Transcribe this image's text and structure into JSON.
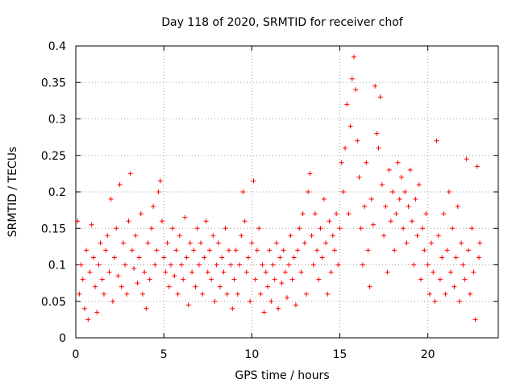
{
  "chart_data": {
    "type": "scatter",
    "title": "Day 118 of 2020, SRMTID for receiver chof",
    "xlabel": "GPS time / hours",
    "ylabel": "SRMTID / TECUs",
    "xlim": [
      0,
      24
    ],
    "ylim": [
      0,
      0.4
    ],
    "xticks": [
      0,
      5,
      10,
      15,
      20
    ],
    "yticks": [
      0,
      0.05,
      0.1,
      0.15,
      0.2,
      0.25,
      0.3,
      0.35,
      0.4
    ],
    "xtick_labels": [
      "0",
      "5",
      "10",
      "15",
      "20"
    ],
    "ytick_labels": [
      "0",
      "0.05",
      "0.1",
      "0.15",
      "0.2",
      "0.25",
      "0.3",
      "0.35",
      "0.4"
    ],
    "grid": true,
    "marker": "+",
    "color": "#ff0000",
    "series": [
      {
        "name": "SRMTID",
        "points": [
          [
            0.1,
            0.16
          ],
          [
            0.2,
            0.06
          ],
          [
            0.3,
            0.1
          ],
          [
            0.4,
            0.08
          ],
          [
            0.5,
            0.04
          ],
          [
            0.6,
            0.12
          ],
          [
            0.7,
            0.025
          ],
          [
            0.8,
            0.09
          ],
          [
            0.9,
            0.155
          ],
          [
            1.0,
            0.11
          ],
          [
            1.1,
            0.07
          ],
          [
            1.2,
            0.035
          ],
          [
            1.3,
            0.1
          ],
          [
            1.4,
            0.13
          ],
          [
            1.5,
            0.08
          ],
          [
            1.6,
            0.06
          ],
          [
            1.7,
            0.12
          ],
          [
            1.8,
            0.14
          ],
          [
            1.9,
            0.09
          ],
          [
            2.0,
            0.19
          ],
          [
            2.1,
            0.05
          ],
          [
            2.2,
            0.11
          ],
          [
            2.3,
            0.15
          ],
          [
            2.4,
            0.085
          ],
          [
            2.5,
            0.21
          ],
          [
            2.6,
            0.07
          ],
          [
            2.7,
            0.13
          ],
          [
            2.8,
            0.1
          ],
          [
            2.9,
            0.06
          ],
          [
            3.0,
            0.16
          ],
          [
            3.1,
            0.225
          ],
          [
            3.2,
            0.12
          ],
          [
            3.3,
            0.095
          ],
          [
            3.4,
            0.14
          ],
          [
            3.5,
            0.075
          ],
          [
            3.6,
            0.11
          ],
          [
            3.7,
            0.17
          ],
          [
            3.8,
            0.06
          ],
          [
            3.9,
            0.09
          ],
          [
            4.0,
            0.04
          ],
          [
            4.1,
            0.13
          ],
          [
            4.2,
            0.08
          ],
          [
            4.3,
            0.15
          ],
          [
            4.4,
            0.18
          ],
          [
            4.5,
            0.1
          ],
          [
            4.6,
            0.12
          ],
          [
            4.7,
            0.2
          ],
          [
            4.8,
            0.215
          ],
          [
            4.9,
            0.16
          ],
          [
            5.0,
            0.11
          ],
          [
            5.1,
            0.09
          ],
          [
            5.2,
            0.13
          ],
          [
            5.3,
            0.07
          ],
          [
            5.4,
            0.1
          ],
          [
            5.5,
            0.15
          ],
          [
            5.6,
            0.085
          ],
          [
            5.7,
            0.12
          ],
          [
            5.8,
            0.06
          ],
          [
            5.9,
            0.14
          ],
          [
            6.0,
            0.1
          ],
          [
            6.1,
            0.08
          ],
          [
            6.2,
            0.165
          ],
          [
            6.3,
            0.11
          ],
          [
            6.4,
            0.045
          ],
          [
            6.5,
            0.13
          ],
          [
            6.6,
            0.09
          ],
          [
            6.7,
            0.12
          ],
          [
            6.8,
            0.07
          ],
          [
            6.9,
            0.15
          ],
          [
            7.0,
            0.1
          ],
          [
            7.1,
            0.13
          ],
          [
            7.2,
            0.06
          ],
          [
            7.3,
            0.11
          ],
          [
            7.4,
            0.16
          ],
          [
            7.5,
            0.09
          ],
          [
            7.6,
            0.12
          ],
          [
            7.7,
            0.08
          ],
          [
            7.8,
            0.14
          ],
          [
            7.9,
            0.05
          ],
          [
            8.0,
            0.1
          ],
          [
            8.1,
            0.13
          ],
          [
            8.2,
            0.07
          ],
          [
            8.3,
            0.11
          ],
          [
            8.4,
            0.09
          ],
          [
            8.5,
            0.15
          ],
          [
            8.6,
            0.06
          ],
          [
            8.7,
            0.12
          ],
          [
            8.8,
            0.1
          ],
          [
            8.9,
            0.04
          ],
          [
            9.0,
            0.08
          ],
          [
            9.1,
            0.12
          ],
          [
            9.2,
            0.06
          ],
          [
            9.3,
            0.1
          ],
          [
            9.4,
            0.14
          ],
          [
            9.5,
            0.2
          ],
          [
            9.6,
            0.16
          ],
          [
            9.7,
            0.09
          ],
          [
            9.8,
            0.11
          ],
          [
            9.9,
            0.05
          ],
          [
            10.0,
            0.13
          ],
          [
            10.1,
            0.215
          ],
          [
            10.2,
            0.08
          ],
          [
            10.3,
            0.12
          ],
          [
            10.4,
            0.15
          ],
          [
            10.5,
            0.06
          ],
          [
            10.6,
            0.1
          ],
          [
            10.7,
            0.035
          ],
          [
            10.8,
            0.09
          ],
          [
            10.9,
            0.07
          ],
          [
            11.0,
            0.12
          ],
          [
            11.1,
            0.05
          ],
          [
            11.2,
            0.1
          ],
          [
            11.3,
            0.08
          ],
          [
            11.4,
            0.13
          ],
          [
            11.5,
            0.04
          ],
          [
            11.6,
            0.11
          ],
          [
            11.7,
            0.075
          ],
          [
            11.8,
            0.12
          ],
          [
            11.9,
            0.09
          ],
          [
            12.0,
            0.055
          ],
          [
            12.1,
            0.1
          ],
          [
            12.2,
            0.14
          ],
          [
            12.3,
            0.08
          ],
          [
            12.4,
            0.11
          ],
          [
            12.5,
            0.045
          ],
          [
            12.6,
            0.12
          ],
          [
            12.7,
            0.15
          ],
          [
            12.8,
            0.09
          ],
          [
            12.9,
            0.17
          ],
          [
            13.0,
            0.13
          ],
          [
            13.1,
            0.06
          ],
          [
            13.2,
            0.2
          ],
          [
            13.3,
            0.225
          ],
          [
            13.4,
            0.14
          ],
          [
            13.5,
            0.1
          ],
          [
            13.6,
            0.17
          ],
          [
            13.7,
            0.12
          ],
          [
            13.8,
            0.08
          ],
          [
            13.9,
            0.15
          ],
          [
            14.0,
            0.11
          ],
          [
            14.1,
            0.19
          ],
          [
            14.2,
            0.13
          ],
          [
            14.3,
            0.06
          ],
          [
            14.4,
            0.16
          ],
          [
            14.5,
            0.09
          ],
          [
            14.6,
            0.14
          ],
          [
            14.7,
            0.12
          ],
          [
            14.8,
            0.17
          ],
          [
            14.9,
            0.1
          ],
          [
            15.0,
            0.15
          ],
          [
            15.1,
            0.24
          ],
          [
            15.2,
            0.2
          ],
          [
            15.3,
            0.26
          ],
          [
            15.4,
            0.32
          ],
          [
            15.5,
            0.17
          ],
          [
            15.6,
            0.29
          ],
          [
            15.7,
            0.355
          ],
          [
            15.8,
            0.385
          ],
          [
            15.9,
            0.34
          ],
          [
            16.0,
            0.27
          ],
          [
            16.1,
            0.22
          ],
          [
            16.2,
            0.15
          ],
          [
            16.3,
            0.1
          ],
          [
            16.4,
            0.18
          ],
          [
            16.5,
            0.24
          ],
          [
            16.6,
            0.12
          ],
          [
            16.7,
            0.07
          ],
          [
            16.8,
            0.19
          ],
          [
            16.9,
            0.155
          ],
          [
            17.0,
            0.345
          ],
          [
            17.1,
            0.28
          ],
          [
            17.2,
            0.26
          ],
          [
            17.3,
            0.33
          ],
          [
            17.4,
            0.21
          ],
          [
            17.5,
            0.14
          ],
          [
            17.6,
            0.18
          ],
          [
            17.7,
            0.09
          ],
          [
            17.8,
            0.23
          ],
          [
            17.9,
            0.16
          ],
          [
            18.0,
            0.2
          ],
          [
            18.1,
            0.12
          ],
          [
            18.2,
            0.17
          ],
          [
            18.3,
            0.24
          ],
          [
            18.4,
            0.19
          ],
          [
            18.5,
            0.22
          ],
          [
            18.6,
            0.15
          ],
          [
            18.7,
            0.2
          ],
          [
            18.8,
            0.13
          ],
          [
            18.9,
            0.18
          ],
          [
            19.0,
            0.23
          ],
          [
            19.1,
            0.16
          ],
          [
            19.2,
            0.1
          ],
          [
            19.3,
            0.19
          ],
          [
            19.4,
            0.14
          ],
          [
            19.5,
            0.21
          ],
          [
            19.6,
            0.08
          ],
          [
            19.7,
            0.15
          ],
          [
            19.8,
            0.12
          ],
          [
            19.9,
            0.17
          ],
          [
            20.0,
            0.1
          ],
          [
            20.1,
            0.06
          ],
          [
            20.2,
            0.13
          ],
          [
            20.3,
            0.09
          ],
          [
            20.4,
            0.05
          ],
          [
            20.5,
            0.27
          ],
          [
            20.6,
            0.14
          ],
          [
            20.7,
            0.08
          ],
          [
            20.8,
            0.11
          ],
          [
            20.9,
            0.17
          ],
          [
            21.0,
            0.06
          ],
          [
            21.1,
            0.12
          ],
          [
            21.2,
            0.2
          ],
          [
            21.3,
            0.09
          ],
          [
            21.4,
            0.15
          ],
          [
            21.5,
            0.07
          ],
          [
            21.6,
            0.11
          ],
          [
            21.7,
            0.18
          ],
          [
            21.8,
            0.05
          ],
          [
            21.9,
            0.13
          ],
          [
            22.0,
            0.1
          ],
          [
            22.1,
            0.08
          ],
          [
            22.2,
            0.245
          ],
          [
            22.3,
            0.12
          ],
          [
            22.4,
            0.06
          ],
          [
            22.5,
            0.15
          ],
          [
            22.6,
            0.09
          ],
          [
            22.7,
            0.025
          ],
          [
            22.8,
            0.235
          ],
          [
            22.9,
            0.11
          ],
          [
            22.95,
            0.13
          ]
        ]
      }
    ]
  }
}
